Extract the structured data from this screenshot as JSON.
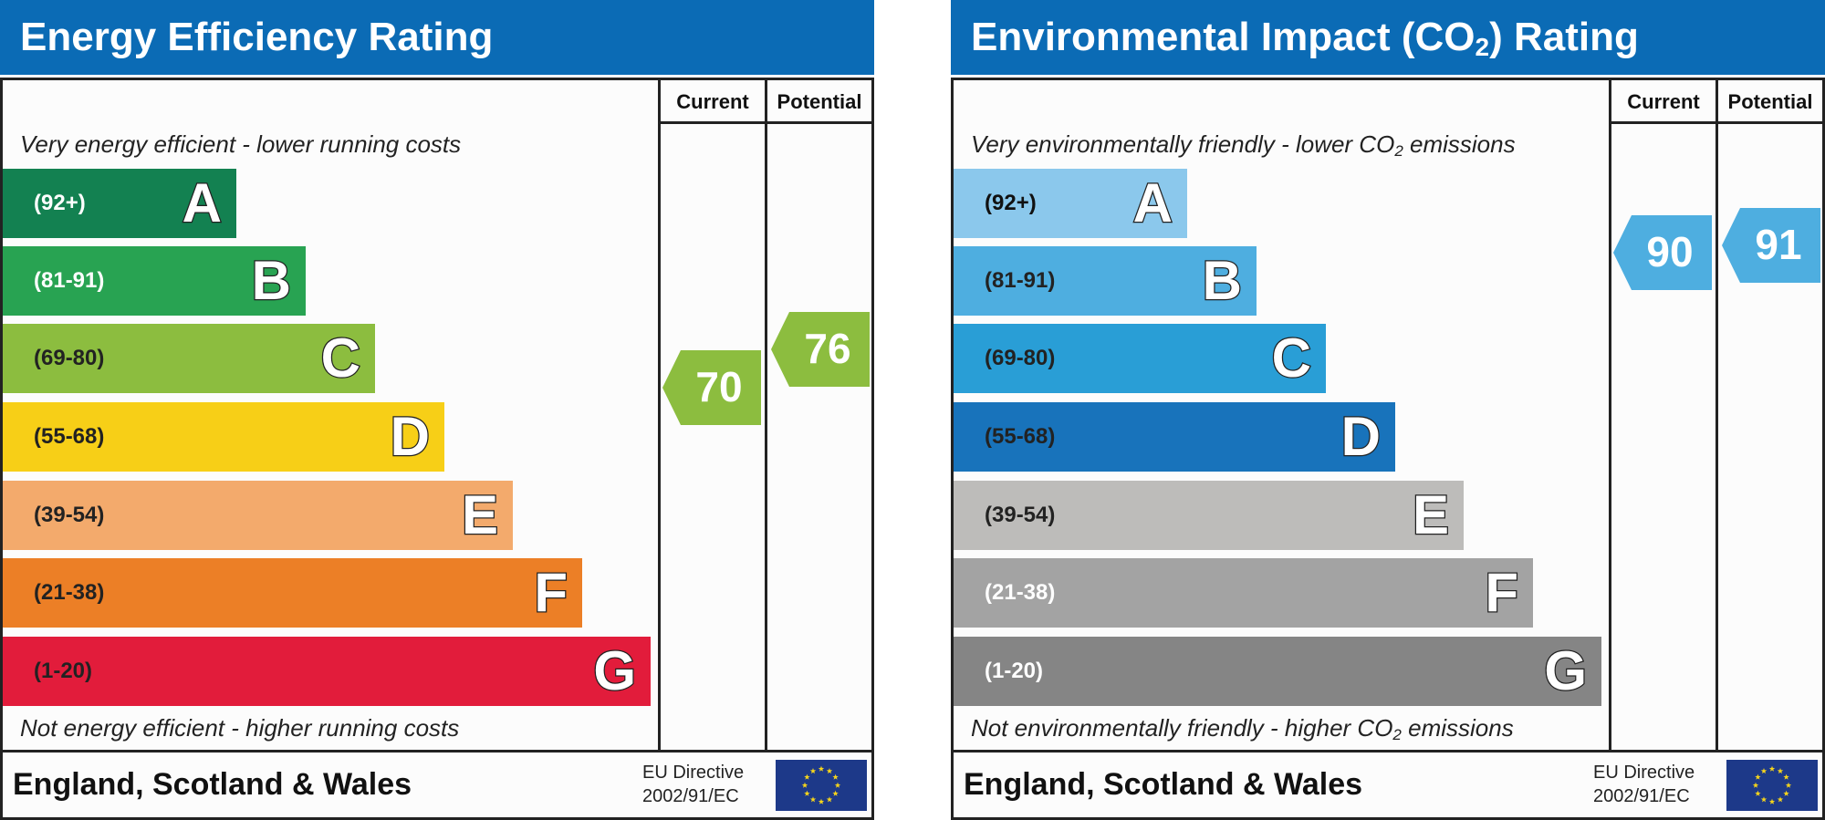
{
  "chart_data": [
    {
      "type": "bar",
      "title": "Energy Efficiency Rating",
      "column_headers": [
        "Current",
        "Potential"
      ],
      "top_caption": "Very energy efficient - lower running costs",
      "bottom_caption": "Not energy efficient - higher running costs",
      "bands": [
        {
          "range": "(92+)",
          "letter": "A",
          "color": "#138151",
          "range_color": "#ffffff"
        },
        {
          "range": "(81-91)",
          "letter": "B",
          "color": "#28a352",
          "range_color": "#ffffff"
        },
        {
          "range": "(69-80)",
          "letter": "C",
          "color": "#8cbd3f",
          "range_color": "#222222"
        },
        {
          "range": "(55-68)",
          "letter": "D",
          "color": "#f7cf17",
          "range_color": "#222222"
        },
        {
          "range": "(39-54)",
          "letter": "E",
          "color": "#f3aa6c",
          "range_color": "#222222"
        },
        {
          "range": "(21-38)",
          "letter": "F",
          "color": "#ec7f26",
          "range_color": "#222222"
        },
        {
          "range": "(1-20)",
          "letter": "G",
          "color": "#e21c3b",
          "range_color": "#222222"
        }
      ],
      "current": {
        "value": 70,
        "color": "#8cbd3f"
      },
      "potential": {
        "value": 76,
        "color": "#8cbd3f"
      },
      "footer": "England, Scotland & Wales",
      "directive_line1": "EU Directive",
      "directive_line2": "2002/91/EC"
    },
    {
      "type": "bar",
      "title": "Environmental Impact (CO₂) Rating",
      "title_main": "Environmental Impact (CO",
      "title_sub": "2",
      "title_end": ") Rating",
      "column_headers": [
        "Current",
        "Potential"
      ],
      "top_caption": "Very environmentally friendly - lower CO₂ emissions",
      "top_caption_main": "Very environmentally friendly - lower CO",
      "top_caption_sub": "2",
      "top_caption_end": " emissions",
      "bottom_caption": "Not environmentally friendly - higher CO₂ emissions",
      "bottom_caption_main": "Not environmentally friendly - higher CO",
      "bottom_caption_sub": "2",
      "bottom_caption_end": " emissions",
      "bands": [
        {
          "range": "(92+)",
          "letter": "A",
          "color": "#8bc8ec",
          "range_color": "#111111"
        },
        {
          "range": "(81-91)",
          "letter": "B",
          "color": "#4eaee0",
          "range_color": "#222222"
        },
        {
          "range": "(69-80)",
          "letter": "C",
          "color": "#299ed6",
          "range_color": "#222222"
        },
        {
          "range": "(55-68)",
          "letter": "D",
          "color": "#1873bb",
          "range_color": "#222222"
        },
        {
          "range": "(39-54)",
          "letter": "E",
          "color": "#bdbcba",
          "range_color": "#222222"
        },
        {
          "range": "(21-38)",
          "letter": "F",
          "color": "#a3a3a3",
          "range_color": "#ffffff"
        },
        {
          "range": "(1-20)",
          "letter": "G",
          "color": "#858585",
          "range_color": "#ffffff"
        }
      ],
      "current": {
        "value": 90,
        "color": "#4eaee0"
      },
      "potential": {
        "value": 91,
        "color": "#4eaee0"
      },
      "footer": "England, Scotland & Wales",
      "directive_line1": "EU Directive",
      "directive_line2": "2002/91/EC"
    }
  ],
  "colors": {
    "title_bar": "#0b6bb5",
    "eu_flag": "#1d3989",
    "eu_stars": "#f6d51b"
  }
}
